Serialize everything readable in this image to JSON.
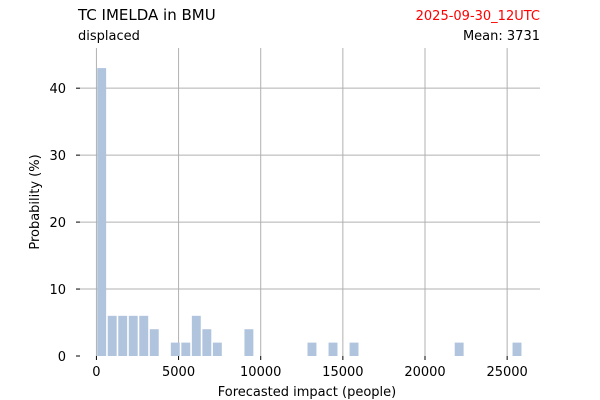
{
  "header": {
    "title": "TC IMELDA in BMU",
    "subtitle": "displaced",
    "timestamp": "2025-09-30_12UTC",
    "mean_label": "Mean: 3731"
  },
  "colors": {
    "bar": "#b0c4de",
    "grid": "#b0b0b0",
    "timestamp": "#ff0000",
    "text": "#000000"
  },
  "chart_data": {
    "type": "bar",
    "title": "TC IMELDA in BMU",
    "xlabel": "Forecasted impact (people)",
    "ylabel": "Probability (%)",
    "xlim": [
      -1000,
      27000
    ],
    "ylim": [
      0,
      46
    ],
    "xticks": [
      0,
      5000,
      10000,
      15000,
      20000,
      25000
    ],
    "yticks": [
      0,
      10,
      20,
      30,
      40
    ],
    "grid": true,
    "bin_width": 640,
    "bars": [
      {
        "x": 0,
        "value": 43
      },
      {
        "x": 640,
        "value": 6
      },
      {
        "x": 1280,
        "value": 6
      },
      {
        "x": 1920,
        "value": 6
      },
      {
        "x": 2560,
        "value": 6
      },
      {
        "x": 3200,
        "value": 4
      },
      {
        "x": 4480,
        "value": 2
      },
      {
        "x": 5120,
        "value": 2
      },
      {
        "x": 5760,
        "value": 6
      },
      {
        "x": 6400,
        "value": 4
      },
      {
        "x": 7040,
        "value": 2
      },
      {
        "x": 8960,
        "value": 4
      },
      {
        "x": 12800,
        "value": 2
      },
      {
        "x": 14080,
        "value": 2
      },
      {
        "x": 15360,
        "value": 2
      },
      {
        "x": 21760,
        "value": 2
      },
      {
        "x": 25280,
        "value": 2
      }
    ]
  }
}
